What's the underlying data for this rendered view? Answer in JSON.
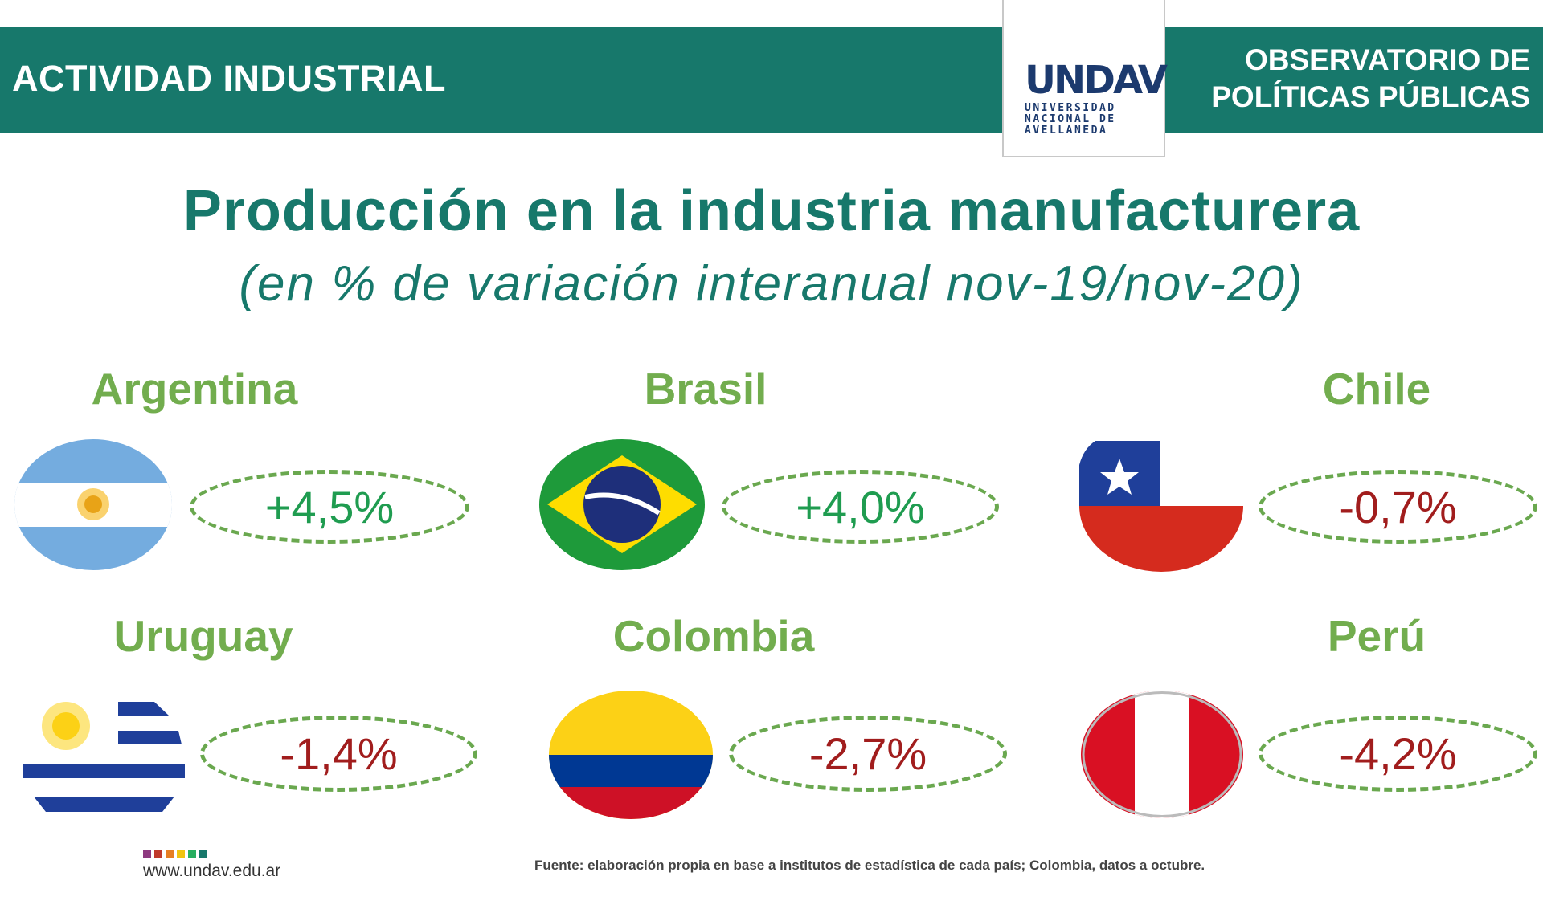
{
  "header": {
    "left_title": "ACTIVIDAD INDUSTRIAL",
    "right_title_line1": "OBSERVATORIO DE",
    "right_title_line2": "POLÍTICAS PÚBLICAS",
    "logo": {
      "mark": "UNDAV",
      "line1": "UNIVERSIDAD",
      "line2": "NACIONAL DE",
      "line3": "AVELLANEDA"
    }
  },
  "title": "Producción en la industria manufacturera",
  "subtitle": "(en % de variación interanual nov-19/nov-20)",
  "countries": [
    {
      "name": "Argentina",
      "value": "+4,5%",
      "flag": "argentina-flag"
    },
    {
      "name": "Brasil",
      "value": "+4,0%",
      "flag": "brazil-flag"
    },
    {
      "name": "Chile",
      "value": "-0,7%",
      "flag": "chile-flag"
    },
    {
      "name": "Uruguay",
      "value": "-1,4%",
      "flag": "uruguay-flag"
    },
    {
      "name": "Colombia",
      "value": "-2,7%",
      "flag": "colombia-flag"
    },
    {
      "name": "Perú",
      "value": "-4,2%",
      "flag": "peru-flag"
    }
  ],
  "colors": {
    "teal": "#17786b",
    "positive": "#1f9c50",
    "negative": "#a11d1d",
    "country_name": "#72ad4e"
  },
  "footer": {
    "url": "www.undav.edu.ar",
    "source": "Fuente: elaboración propia en base a institutos de estadística de cada país; Colombia, datos a octubre."
  }
}
